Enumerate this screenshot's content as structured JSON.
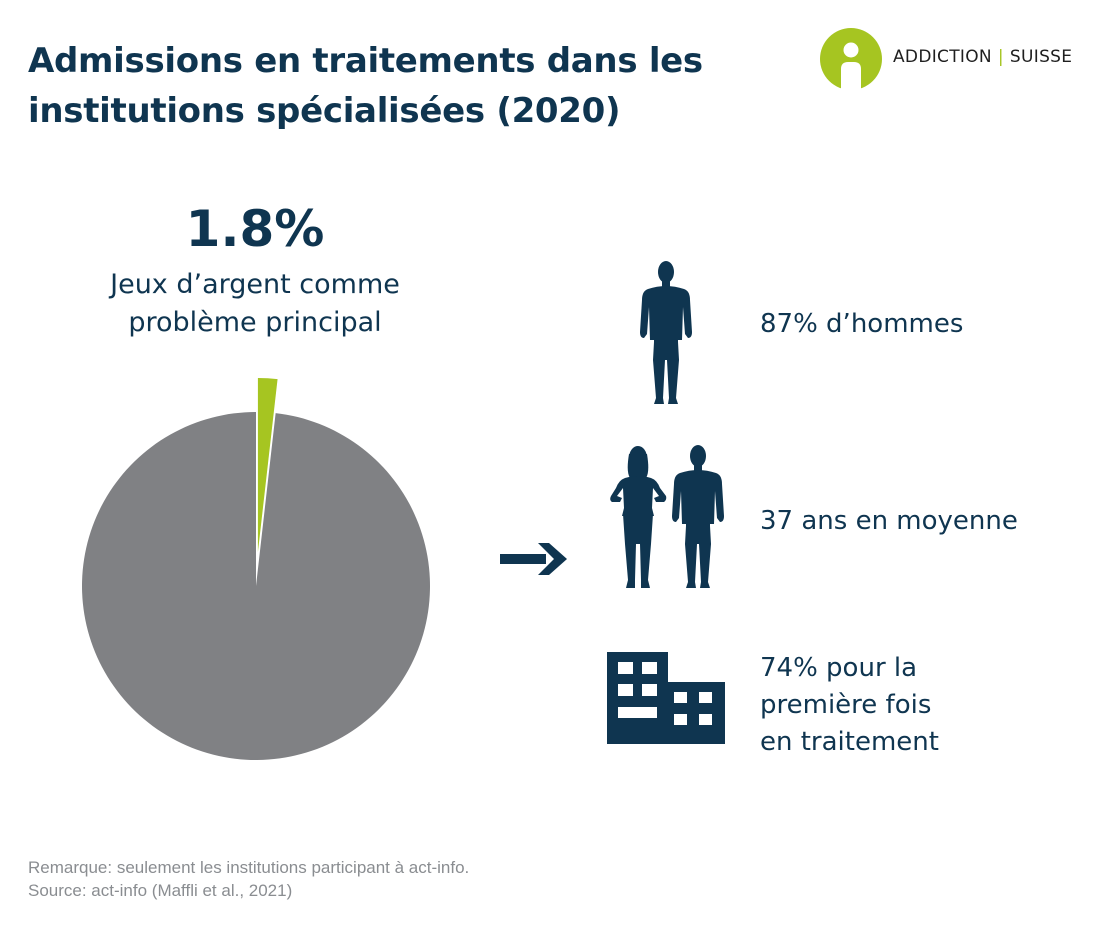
{
  "title": {
    "line1": "Admissions en traitements dans les",
    "line2": "institutions spécialisées (2020)"
  },
  "logo": {
    "left": "ADDICTION",
    "separator": "|",
    "right": "SUISSE"
  },
  "highlight": {
    "value": "1.8%",
    "caption_line1": "Jeux d’argent comme",
    "caption_line2": "problème principal"
  },
  "chart_data": {
    "type": "pie",
    "slices": [
      {
        "label": "Jeux d’argent comme problème principal",
        "value": 1.8,
        "color": "#a6c521",
        "exploded": true
      },
      {
        "value": 98.2,
        "color": "#808184"
      }
    ]
  },
  "stats": [
    {
      "icon": "man-silhouette-icon",
      "lines": [
        "87% d’hommes"
      ]
    },
    {
      "icon": "woman-and-man-silhouette-icon",
      "lines": [
        "37 ans en moyenne"
      ]
    },
    {
      "icon": "building-icon",
      "lines": [
        "74% pour la",
        "première fois",
        "en traitement"
      ]
    }
  ],
  "colors": {
    "navy": "#0f3550",
    "green": "#a6c521",
    "grey": "#808184",
    "note": "#8a8d91"
  },
  "footnote": {
    "remark": "Remarque: seulement les institutions participant à act-info.",
    "source": "Source: act-info (Maffli et al., 2021)"
  }
}
